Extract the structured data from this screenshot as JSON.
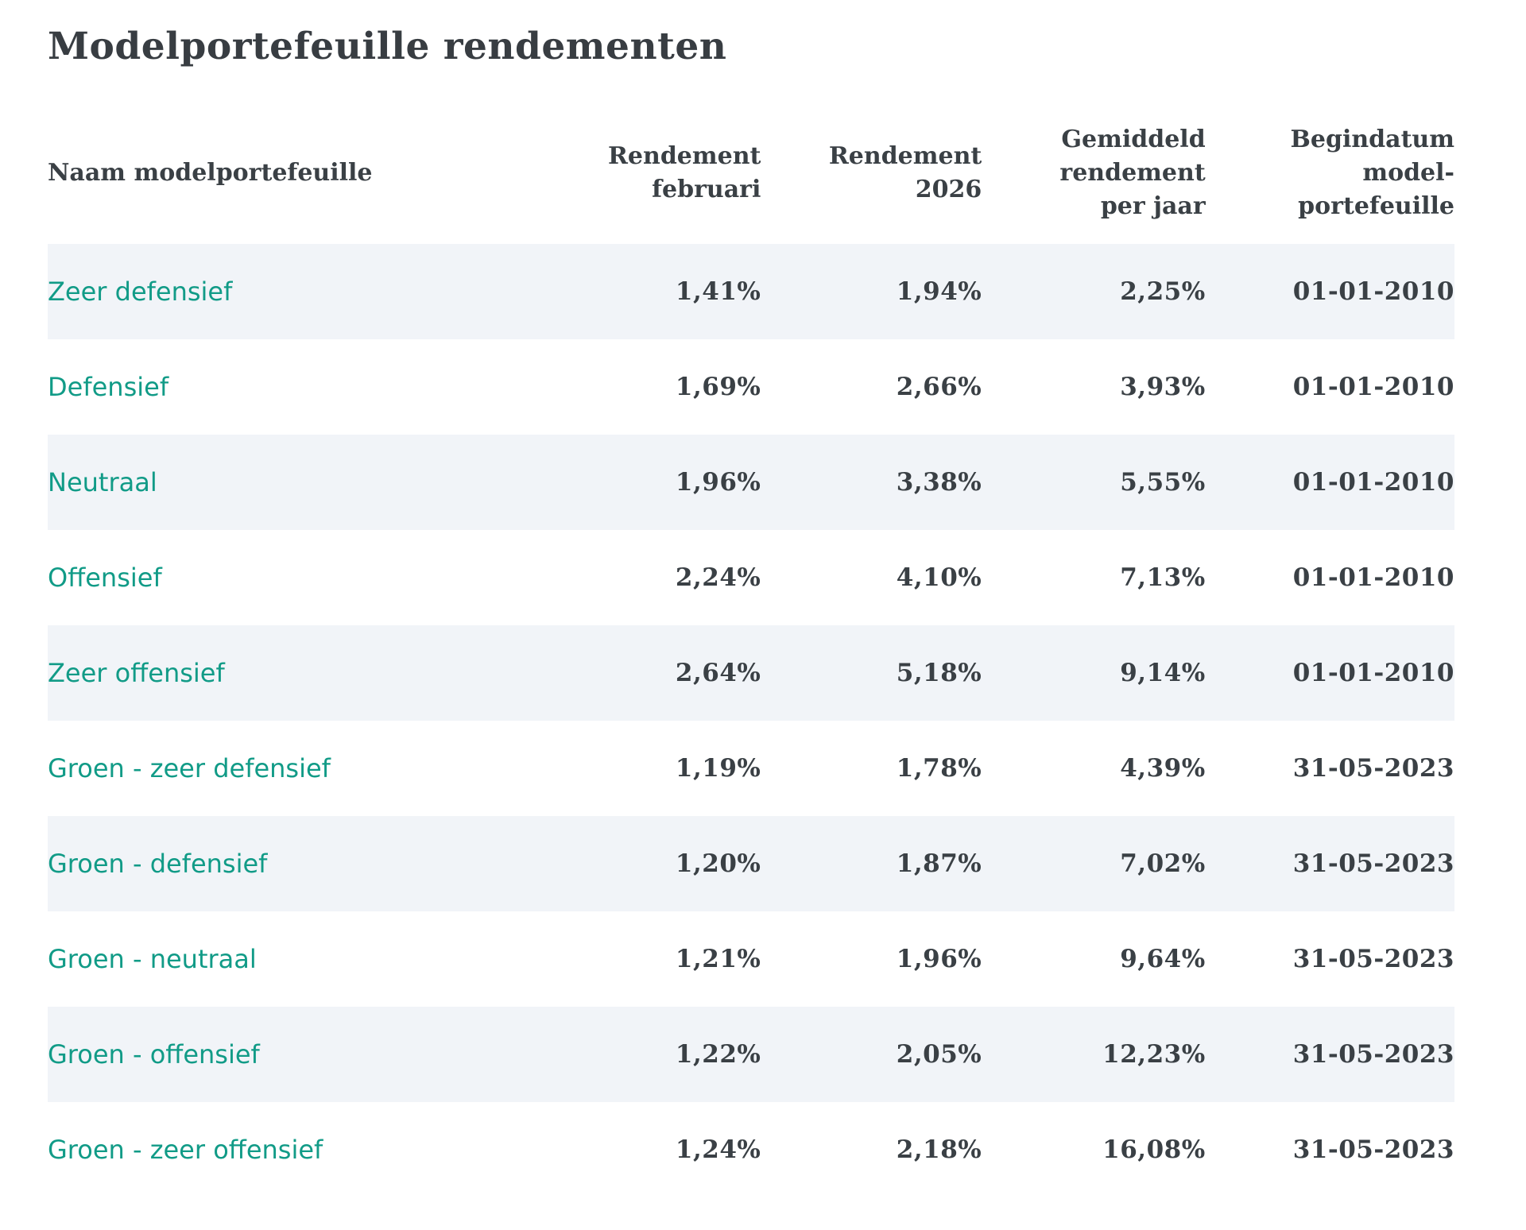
{
  "page": {
    "title": "Modelportefeuille rendementen"
  },
  "colors": {
    "accent_teal": "#119b87",
    "row_stripe": "#f1f4f8",
    "text_dark": "#3a4045",
    "background": "#ffffff"
  },
  "table": {
    "columns": [
      {
        "key": "name",
        "label": "Naam modelportefeuille",
        "align": "left"
      },
      {
        "key": "rendement_februari",
        "label": "Rendement februari",
        "align": "right"
      },
      {
        "key": "rendement_2026",
        "label": "Rendement 2026",
        "align": "right"
      },
      {
        "key": "gemiddeld_rendement_per_jaar",
        "label": "Gemiddeld rendement per jaar",
        "align": "right"
      },
      {
        "key": "begindatum",
        "label": "Begindatum model-portefeuille",
        "align": "right"
      }
    ],
    "rows": [
      {
        "name": "Zeer defensief",
        "rendement_februari": "1,41%",
        "rendement_2026": "1,94%",
        "gemiddeld_rendement_per_jaar": "2,25%",
        "begindatum": "01-01-2010"
      },
      {
        "name": "Defensief",
        "rendement_februari": "1,69%",
        "rendement_2026": "2,66%",
        "gemiddeld_rendement_per_jaar": "3,93%",
        "begindatum": "01-01-2010"
      },
      {
        "name": "Neutraal",
        "rendement_februari": "1,96%",
        "rendement_2026": "3,38%",
        "gemiddeld_rendement_per_jaar": "5,55%",
        "begindatum": "01-01-2010"
      },
      {
        "name": "Offensief",
        "rendement_februari": "2,24%",
        "rendement_2026": "4,10%",
        "gemiddeld_rendement_per_jaar": "7,13%",
        "begindatum": "01-01-2010"
      },
      {
        "name": "Zeer offensief",
        "rendement_februari": "2,64%",
        "rendement_2026": "5,18%",
        "gemiddeld_rendement_per_jaar": "9,14%",
        "begindatum": "01-01-2010"
      },
      {
        "name": "Groen - zeer defensief",
        "rendement_februari": "1,19%",
        "rendement_2026": "1,78%",
        "gemiddeld_rendement_per_jaar": "4,39%",
        "begindatum": "31-05-2023"
      },
      {
        "name": "Groen - defensief",
        "rendement_februari": "1,20%",
        "rendement_2026": "1,87%",
        "gemiddeld_rendement_per_jaar": "7,02%",
        "begindatum": "31-05-2023"
      },
      {
        "name": "Groen - neutraal",
        "rendement_februari": "1,21%",
        "rendement_2026": "1,96%",
        "gemiddeld_rendement_per_jaar": "9,64%",
        "begindatum": "31-05-2023"
      },
      {
        "name": "Groen - offensief",
        "rendement_februari": "1,22%",
        "rendement_2026": "2,05%",
        "gemiddeld_rendement_per_jaar": "12,23%",
        "begindatum": "31-05-2023"
      },
      {
        "name": "Groen - zeer offensief",
        "rendement_februari": "1,24%",
        "rendement_2026": "2,18%",
        "gemiddeld_rendement_per_jaar": "16,08%",
        "begindatum": "31-05-2023"
      }
    ]
  }
}
